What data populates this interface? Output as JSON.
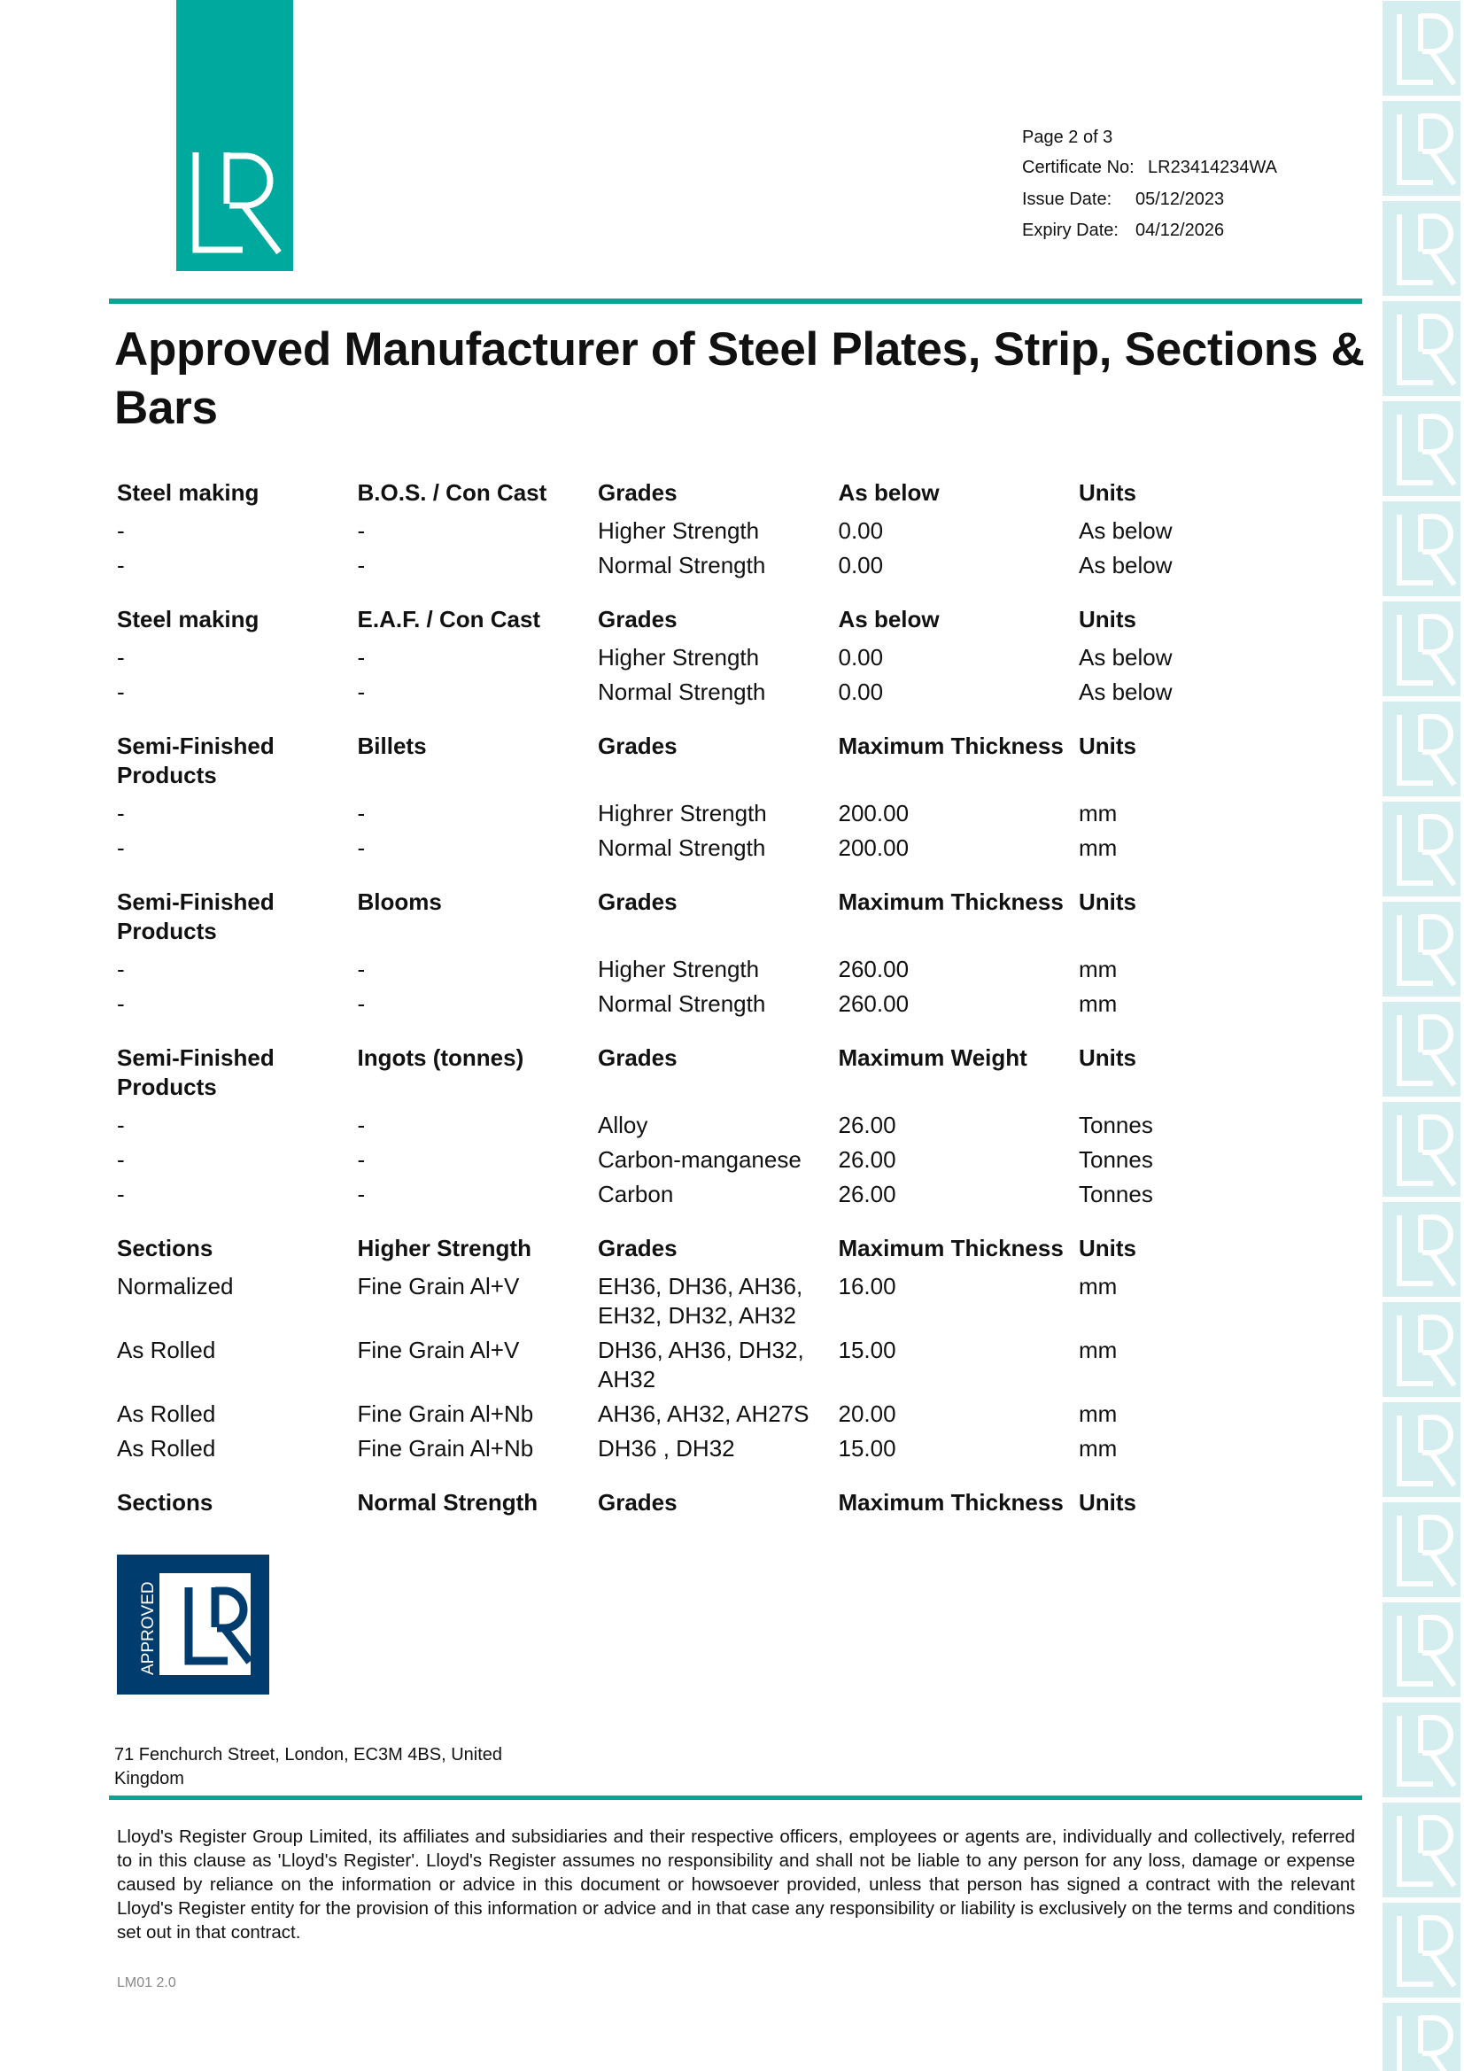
{
  "brand": {
    "logo_text": "LR",
    "approved_logo_text": "APPROVED",
    "teal": "#00a99d",
    "navy": "#003d6e",
    "watermark": "#d4eef0"
  },
  "header": {
    "page": "Page 2 of 3",
    "certificate_label": "Certificate No:",
    "certificate_value": "LR23414234WA",
    "issue_label": "Issue Date:",
    "issue_value": "05/12/2023",
    "expiry_label": "Expiry Date:",
    "expiry_value": "04/12/2026"
  },
  "title": "Approved Manufacturer of Steel Plates, Strip, Sections & Bars",
  "table": [
    {
      "type": "hdr",
      "cells": [
        "Steel making",
        "B.O.S. / Con Cast",
        "Grades",
        "As below",
        "Units"
      ]
    },
    {
      "type": "dat",
      "cells": [
        "-",
        "-",
        "Higher Strength",
        "0.00",
        "As below"
      ]
    },
    {
      "type": "dat",
      "cells": [
        "-",
        "-",
        "Normal Strength",
        "0.00",
        "As below"
      ]
    },
    {
      "type": "hdr",
      "cells": [
        "Steel making",
        "E.A.F. / Con Cast",
        "Grades",
        "As below",
        "Units"
      ]
    },
    {
      "type": "dat",
      "cells": [
        "-",
        "-",
        "Higher Strength",
        "0.00",
        "As below"
      ]
    },
    {
      "type": "dat",
      "cells": [
        "-",
        "-",
        "Normal Strength",
        "0.00",
        "As below"
      ]
    },
    {
      "type": "hdr",
      "cells": [
        "Semi-Finished Products",
        "Billets",
        "Grades",
        "Maximum Thickness",
        "Units"
      ]
    },
    {
      "type": "dat",
      "cells": [
        "-",
        "-",
        "Highrer Strength",
        "200.00",
        "mm"
      ]
    },
    {
      "type": "dat",
      "cells": [
        "-",
        "-",
        "Normal Strength",
        "200.00",
        "mm"
      ]
    },
    {
      "type": "hdr",
      "cells": [
        "Semi-Finished Products",
        "Blooms",
        "Grades",
        "Maximum Thickness",
        "Units"
      ]
    },
    {
      "type": "dat",
      "cells": [
        "-",
        "-",
        "Higher Strength",
        "260.00",
        "mm"
      ]
    },
    {
      "type": "dat",
      "cells": [
        "-",
        "-",
        "Normal Strength",
        "260.00",
        "mm"
      ]
    },
    {
      "type": "hdr",
      "cells": [
        "Semi-Finished Products",
        "Ingots (tonnes)",
        "Grades",
        "Maximum Weight",
        "Units"
      ]
    },
    {
      "type": "dat",
      "cells": [
        "-",
        "-",
        "Alloy",
        "26.00",
        "Tonnes"
      ]
    },
    {
      "type": "dat",
      "cells": [
        "-",
        "-",
        "Carbon-manganese",
        "26.00",
        "Tonnes"
      ]
    },
    {
      "type": "dat",
      "cells": [
        "-",
        "-",
        "Carbon",
        "26.00",
        "Tonnes"
      ]
    },
    {
      "type": "hdr",
      "cells": [
        "Sections",
        "Higher Strength",
        "Grades",
        "Maximum Thickness",
        "Units"
      ]
    },
    {
      "type": "dat",
      "cells": [
        "Normalized",
        "Fine Grain Al+V",
        "EH36, DH36, AH36, EH32, DH32, AH32",
        "16.00",
        "mm"
      ]
    },
    {
      "type": "dat",
      "cells": [
        "As Rolled",
        "Fine Grain Al+V",
        "DH36, AH36, DH32, AH32",
        "15.00",
        "mm"
      ]
    },
    {
      "type": "dat",
      "cells": [
        "As Rolled",
        "Fine Grain Al+Nb",
        "AH36, AH32, AH27S",
        "20.00",
        "mm"
      ]
    },
    {
      "type": "dat",
      "cells": [
        "As Rolled",
        "Fine Grain Al+Nb",
        "DH36 , DH32",
        "15.00",
        "mm"
      ]
    },
    {
      "type": "hdr",
      "cells": [
        "Sections",
        "Normal Strength",
        "Grades",
        "Maximum Thickness",
        "Units"
      ]
    }
  ],
  "footer": {
    "address": "71 Fenchurch Street, London, EC3M 4BS, United Kingdom",
    "disclaimer": "Lloyd's Register Group Limited, its affiliates and subsidiaries and their respective officers, employees or agents are, individually and collectively, referred to in this clause as 'Lloyd's Register'. Lloyd's Register assumes no responsibility and shall not be liable to any person for any loss, damage or expense caused by reliance on the information or advice in this document or howsoever provided, unless that person has signed a contract with the relevant Lloyd's Register entity for the provision of this information or advice and in that case any responsibility or liability is exclusively on the terms and conditions set out in that contract.",
    "code": "LM01 2.0"
  }
}
